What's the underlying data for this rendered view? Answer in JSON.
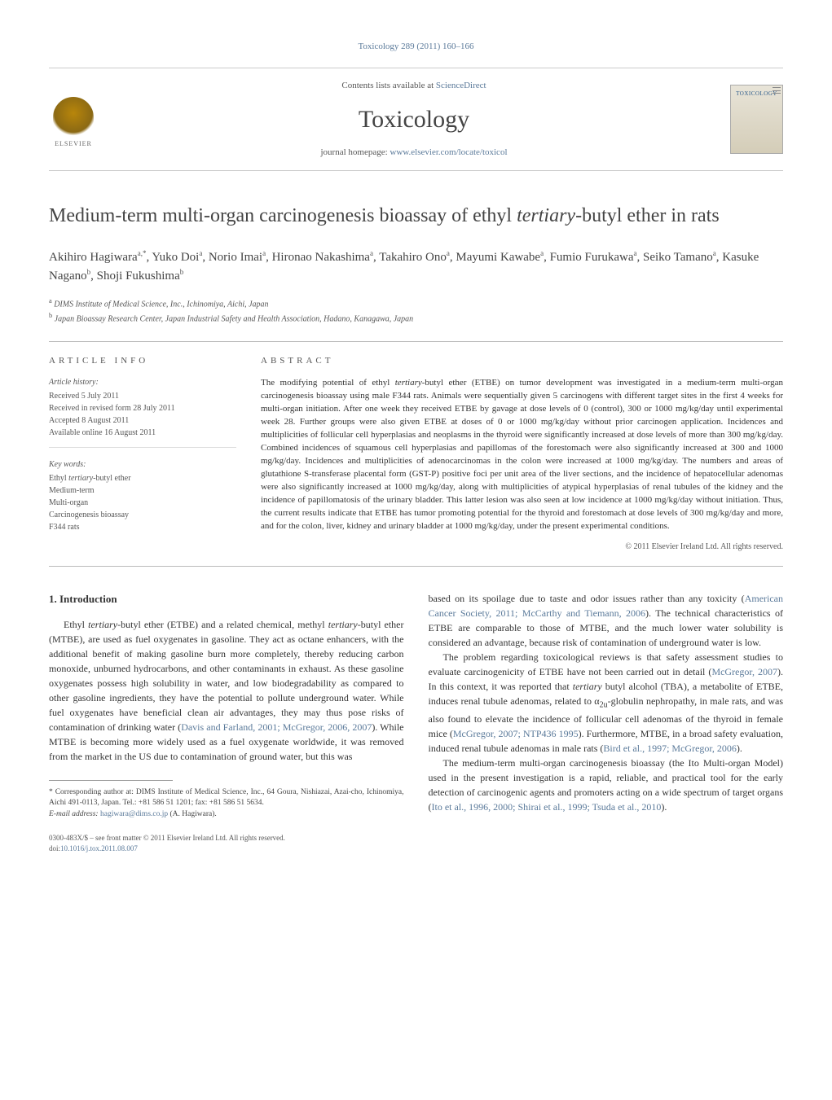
{
  "journal_ref": "Toxicology 289 (2011) 160–166",
  "header": {
    "contents_prefix": "Contents lists available at ",
    "contents_link": "ScienceDirect",
    "journal_name": "Toxicology",
    "homepage_prefix": "journal homepage: ",
    "homepage_url": "www.elsevier.com/locate/toxicol",
    "publisher_name": "ELSEVIER",
    "cover_title": "TOXICOLOGY"
  },
  "article": {
    "title_pre": "Medium-term multi-organ carcinogenesis bioassay of ethyl ",
    "title_ital": "tertiary",
    "title_post": "-butyl ether in rats",
    "authors_html": "Akihiro Hagiwara<sup>a,*</sup>, Yuko Doi<sup>a</sup>, Norio Imai<sup>a</sup>, Hironao Nakashima<sup>a</sup>, Takahiro Ono<sup>a</sup>, Mayumi Kawabe<sup>a</sup>, Fumio Furukawa<sup>a</sup>, Seiko Tamano<sup>a</sup>, Kasuke Nagano<sup>b</sup>, Shoji Fukushima<sup>b</sup>",
    "affiliations": [
      "a DIMS Institute of Medical Science, Inc., Ichinomiya, Aichi, Japan",
      "b Japan Bioassay Research Center, Japan Industrial Safety and Health Association, Hadano, Kanagawa, Japan"
    ]
  },
  "article_info": {
    "heading": "ARTICLE INFO",
    "history_label": "Article history:",
    "history": [
      "Received 5 July 2011",
      "Received in revised form 28 July 2011",
      "Accepted 8 August 2011",
      "Available online 16 August 2011"
    ],
    "keywords_label": "Key words:",
    "keywords": [
      "Ethyl tertiary-butyl ether",
      "Medium-term",
      "Multi-organ",
      "Carcinogenesis bioassay",
      "F344 rats"
    ]
  },
  "abstract": {
    "heading": "ABSTRACT",
    "text": "The modifying potential of ethyl tertiary-butyl ether (ETBE) on tumor development was investigated in a medium-term multi-organ carcinogenesis bioassay using male F344 rats. Animals were sequentially given 5 carcinogens with different target sites in the first 4 weeks for multi-organ initiation. After one week they received ETBE by gavage at dose levels of 0 (control), 300 or 1000 mg/kg/day until experimental week 28. Further groups were also given ETBE at doses of 0 or 1000 mg/kg/day without prior carcinogen application. Incidences and multiplicities of follicular cell hyperplasias and neoplasms in the thyroid were significantly increased at dose levels of more than 300 mg/kg/day. Combined incidences of squamous cell hyperplasias and papillomas of the forestomach were also significantly increased at 300 and 1000 mg/kg/day. Incidences and multiplicities of adenocarcinomas in the colon were increased at 1000 mg/kg/day. The numbers and areas of glutathione S-transferase placental form (GST-P) positive foci per unit area of the liver sections, and the incidence of hepatocellular adenomas were also significantly increased at 1000 mg/kg/day, along with multiplicities of atypical hyperplasias of renal tubules of the kidney and the incidence of papillomatosis of the urinary bladder. This latter lesion was also seen at low incidence at 1000 mg/kg/day without initiation. Thus, the current results indicate that ETBE has tumor promoting potential for the thyroid and forestomach at dose levels of 300 mg/kg/day and more, and for the colon, liver, kidney and urinary bladder at 1000 mg/kg/day, under the present experimental conditions.",
    "copyright": "© 2011 Elsevier Ireland Ltd. All rights reserved."
  },
  "body": {
    "section_heading": "1. Introduction",
    "left_paragraphs": [
      "Ethyl <span class=\"italic\">tertiary</span>-butyl ether (ETBE) and a related chemical, methyl <span class=\"italic\">tertiary</span>-butyl ether (MTBE), are used as fuel oxygenates in gasoline. They act as octane enhancers, with the additional benefit of making gasoline burn more completely, thereby reducing carbon monoxide, unburned hydrocarbons, and other contaminants in exhaust. As these gasoline oxygenates possess high solubility in water, and low biodegradability as compared to other gasoline ingredients, they have the potential to pollute underground water. While fuel oxygenates have beneficial clean air advantages, they may thus pose risks of contamination of drinking water (<span class=\"ref-link\">Davis and Farland, 2001; McGregor, 2006, 2007</span>). While MTBE is becoming more widely used as a fuel oxygenate worldwide, it was removed from the market in the US due to contamination of ground water, but this was"
    ],
    "right_paragraphs": [
      "based on its spoilage due to taste and odor issues rather than any toxicity (<span class=\"ref-link\">American Cancer Society, 2011; McCarthy and Tiemann, 2006</span>). The technical characteristics of ETBE are comparable to those of MTBE, and the much lower water solubility is considered an advantage, because risk of contamination of underground water is low.",
      "The problem regarding toxicological reviews is that safety assessment studies to evaluate carcinogenicity of ETBE have not been carried out in detail (<span class=\"ref-link\">McGregor, 2007</span>). In this context, it was reported that <span class=\"italic\">tertiary</span> butyl alcohol (TBA), a metabolite of ETBE, induces renal tubule adenomas, related to α<sub>2u</sub>-globulin nephropathy, in male rats, and was also found to elevate the incidence of follicular cell adenomas of the thyroid in female mice (<span class=\"ref-link\">McGregor, 2007; NTP436 1995</span>). Furthermore, MTBE, in a broad safety evaluation, induced renal tubule adenomas in male rats (<span class=\"ref-link\">Bird et al., 1997; McGregor, 2006</span>).",
      "The medium-term multi-organ carcinogenesis bioassay (the Ito Multi-organ Model) used in the present investigation is a rapid, reliable, and practical tool for the early detection of carcinogenic agents and promoters acting on a wide spectrum of target organs (<span class=\"ref-link\">Ito et al., 1996, 2000; Shirai et al., 1999; Tsuda et al., 2010</span>)."
    ]
  },
  "footnote": {
    "corresponding": "* Corresponding author at: DIMS Institute of Medical Science, Inc., 64 Goura, Nishiazai, Azai-cho, Ichinomiya, Aichi 491-0113, Japan. Tel.: +81 586 51 1201; fax: +81 586 51 5634.",
    "email_label": "E-mail address:",
    "email": "hagiwara@dims.co.jp",
    "email_author": "(A. Hagiwara)."
  },
  "footer": {
    "line1": "0300-483X/$ – see front matter © 2011 Elsevier Ireland Ltd. All rights reserved.",
    "doi_label": "doi:",
    "doi": "10.1016/j.tox.2011.08.007"
  },
  "colors": {
    "link": "#5b7a9a",
    "text": "#333333",
    "muted": "#555555",
    "border": "#cccccc"
  }
}
